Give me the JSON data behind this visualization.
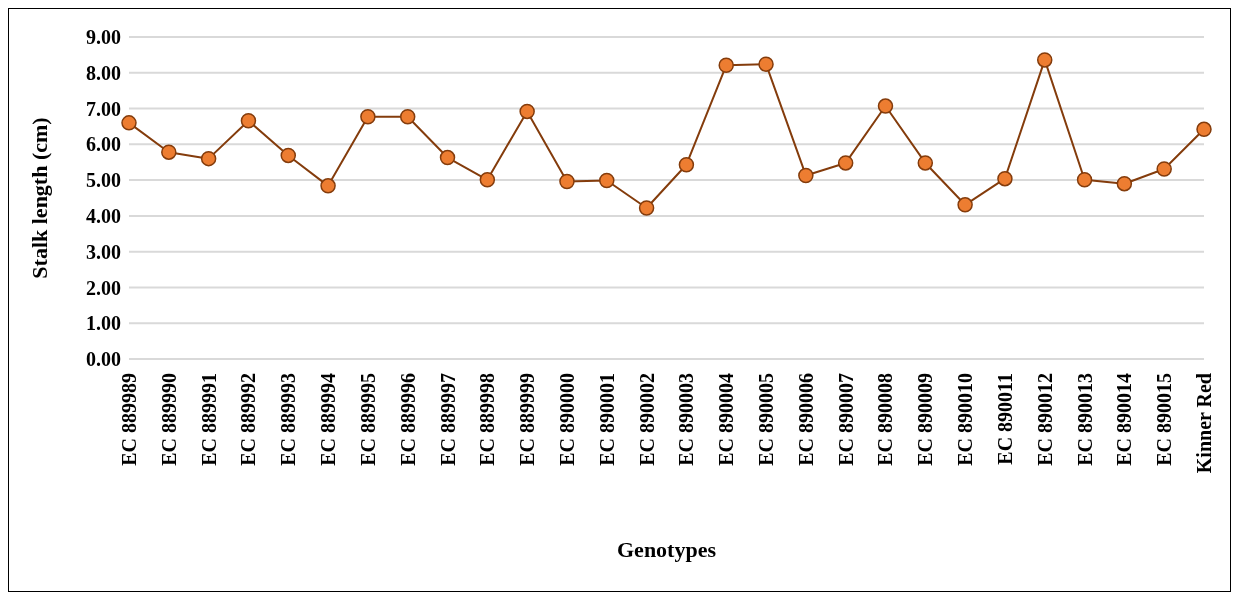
{
  "chart_data": {
    "type": "line",
    "xlabel": "Genotypes",
    "ylabel": "Stalk length (cm)",
    "categories": [
      "EC 889989",
      "EC 889990",
      "EC 889991",
      "EC 889992",
      "EC 889993",
      "EC 889994",
      "EC 889995",
      "EC 889996",
      "EC 889997",
      "EC 889998",
      "EC 889999",
      "EC 890000",
      "EC 890001",
      "EC 890002",
      "EC 890003",
      "EC 890004",
      "EC 890005",
      "EC 890006",
      "EC 890007",
      "EC 890008",
      "EC 890009",
      "EC 890010",
      "EC 890011",
      "EC 890012",
      "EC 890013",
      "EC 890014",
      "EC 890015",
      "Kinner Red"
    ],
    "series": [
      {
        "color": "#843c0c",
        "values": [
          6.6,
          5.78,
          5.6,
          6.66,
          5.69,
          4.84,
          6.77,
          6.77,
          5.63,
          5.01,
          6.92,
          4.96,
          4.99,
          4.22,
          5.43,
          8.21,
          8.24,
          5.13,
          5.48,
          7.07,
          5.48,
          4.31,
          5.04,
          8.36,
          5.01,
          4.9,
          5.31,
          6.42
        ]
      }
    ],
    "ylim": [
      0,
      9
    ],
    "yticks": [
      {
        "value": 0,
        "label": "0.00"
      },
      {
        "value": 1,
        "label": "1.00"
      },
      {
        "value": 2,
        "label": "2.00"
      },
      {
        "value": 3,
        "label": "3.00"
      },
      {
        "value": 4,
        "label": "4.00"
      },
      {
        "value": 5,
        "label": "5.00"
      },
      {
        "value": 6,
        "label": "6.00"
      },
      {
        "value": 7,
        "label": "7.00"
      },
      {
        "value": 8,
        "label": "8.00"
      },
      {
        "value": 9,
        "label": "9.00"
      }
    ],
    "grid": "y",
    "marker": "circle",
    "line_style": "solid",
    "legend": false
  }
}
